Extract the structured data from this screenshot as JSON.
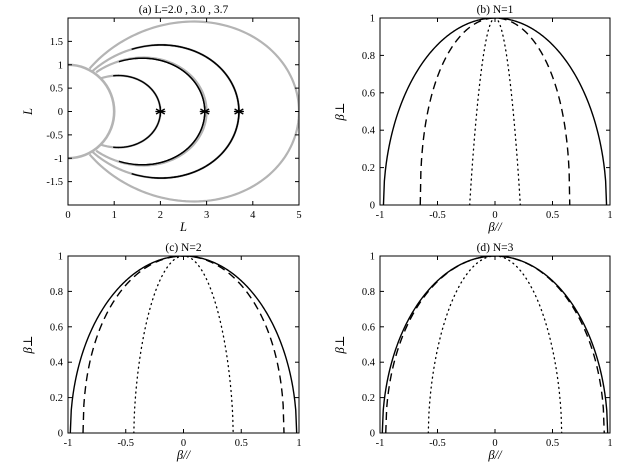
{
  "chart_data": [
    {
      "id": "a",
      "type": "line",
      "title": "(a) L=2.0 , 3.0 , 3.7",
      "xlabel": "L",
      "ylabel": "L",
      "xlim": [
        0,
        5
      ],
      "ylim": [
        -2,
        2
      ],
      "xticks": [
        0,
        1,
        2,
        3,
        4,
        5
      ],
      "yticks": [
        -1.5,
        -1,
        -0.5,
        0,
        0.5,
        1,
        1.5
      ],
      "xtick_labels": [
        "0",
        "1",
        "2",
        "3",
        "4",
        "5"
      ],
      "ytick_labels": [
        "-1.5",
        "-1",
        "-0.5",
        "0",
        "0.5",
        "1",
        "1.5"
      ],
      "markers": [
        {
          "x": 2.0,
          "y": 0,
          "symbol": "*"
        },
        {
          "x": 2.96,
          "y": 0,
          "symbol": "*"
        },
        {
          "x": 3.7,
          "y": 0,
          "symbol": "*"
        }
      ],
      "series": [
        {
          "style": "earth-disk",
          "color": "#b4b4b4",
          "radius": 1.0
        },
        {
          "style": "field-line",
          "color": "#b4b4b4",
          "L": 2.0
        },
        {
          "style": "field-line",
          "color": "#b4b4b4",
          "L": 3.0
        },
        {
          "style": "field-line",
          "color": "#b4b4b4",
          "L": 3.7
        },
        {
          "style": "field-line",
          "color": "#b4b4b4",
          "L": 5.0
        },
        {
          "style": "drift-shell",
          "color": "#000000",
          "L": 2.0,
          "lat_max_deg": 38
        },
        {
          "style": "drift-shell",
          "color": "#000000",
          "L": 2.96,
          "lat_max_deg": 44
        },
        {
          "style": "drift-shell",
          "color": "#000000",
          "L": 2.96,
          "lat_max_deg": 38
        },
        {
          "style": "drift-shell",
          "color": "#000000",
          "L": 3.7,
          "lat_max_deg": 44
        },
        {
          "style": "drift-shell",
          "color": "#000000",
          "L": 3.7,
          "lat_max_deg": 38
        }
      ],
      "grid": false
    },
    {
      "id": "b",
      "type": "line",
      "title": "(b) N=1",
      "xlabel": "β//",
      "ylabel": "β⊥",
      "xlim": [
        -1,
        1
      ],
      "ylim": [
        0,
        1
      ],
      "xticks": [
        -1,
        -0.5,
        0,
        0.5,
        1
      ],
      "yticks": [
        0,
        0.2,
        0.4,
        0.6,
        0.8,
        1
      ],
      "xtick_labels": [
        "-1",
        "-0.5",
        "0",
        "0.5",
        "1"
      ],
      "ytick_labels": [
        "0",
        "0.2",
        "0.4",
        "0.6",
        "0.8",
        "1"
      ],
      "series": [
        {
          "style": "solid",
          "half_width": 0.97,
          "exponent": 0.5
        },
        {
          "style": "dashed",
          "half_width": 0.65,
          "exponent": 0.42
        },
        {
          "style": "dotted",
          "half_width": 0.22,
          "exponent": 0.95
        }
      ],
      "grid": false
    },
    {
      "id": "c",
      "type": "line",
      "title": "(c) N=2",
      "xlabel": "β//",
      "ylabel": "β⊥",
      "xlim": [
        -1,
        1
      ],
      "ylim": [
        0,
        1
      ],
      "xticks": [
        -1,
        -0.5,
        0,
        0.5,
        1
      ],
      "yticks": [
        0,
        0.2,
        0.4,
        0.6,
        0.8,
        1
      ],
      "xtick_labels": [
        "-1",
        "-0.5",
        "0",
        "0.5",
        "1"
      ],
      "ytick_labels": [
        "0",
        "0.2",
        "0.4",
        "0.6",
        "0.8",
        "1"
      ],
      "series": [
        {
          "style": "solid",
          "half_width": 0.98,
          "exponent": 0.5
        },
        {
          "style": "dashed",
          "half_width": 0.87,
          "exponent": 0.45
        },
        {
          "style": "dotted",
          "half_width": 0.43,
          "exponent": 0.58
        }
      ],
      "grid": false
    },
    {
      "id": "d",
      "type": "line",
      "title": "(d) N=3",
      "xlabel": "β//",
      "ylabel": "β⊥",
      "xlim": [
        -1,
        1
      ],
      "ylim": [
        0,
        1
      ],
      "xticks": [
        -1,
        -0.5,
        0,
        0.5,
        1
      ],
      "yticks": [
        0,
        0.2,
        0.4,
        0.6,
        0.8,
        1
      ],
      "xtick_labels": [
        "-1",
        "-0.5",
        "0",
        "0.5",
        "1"
      ],
      "ytick_labels": [
        "0",
        "0.2",
        "0.4",
        "0.6",
        "0.8",
        "1"
      ],
      "series": [
        {
          "style": "solid",
          "half_width": 0.98,
          "exponent": 0.5
        },
        {
          "style": "dashed",
          "half_width": 0.95,
          "exponent": 0.48
        },
        {
          "style": "dotted",
          "half_width": 0.58,
          "exponent": 0.55
        }
      ],
      "grid": false
    }
  ]
}
